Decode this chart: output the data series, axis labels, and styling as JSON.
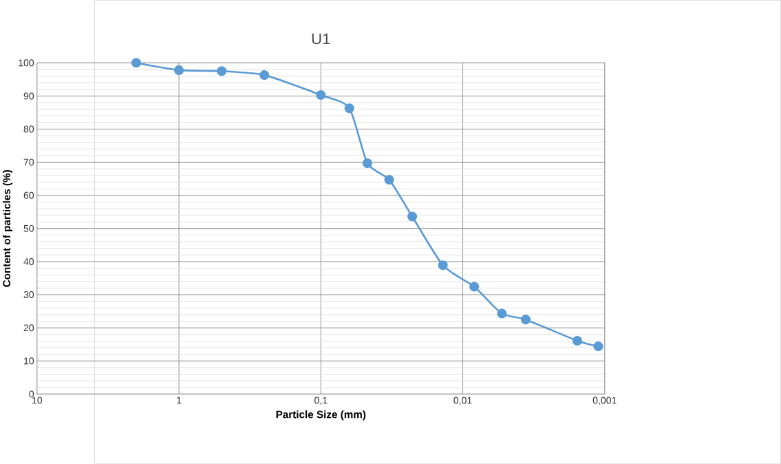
{
  "chart_data": {
    "type": "line",
    "title": "U1",
    "xlabel": "Particle Size (mm)",
    "ylabel": "Content of particles (%)",
    "x": [
      2,
      1,
      0.5,
      0.25,
      0.1,
      0.063,
      0.047,
      0.033,
      0.0227,
      0.0138,
      0.0083,
      0.0053,
      0.0036,
      0.00156,
      0.00111
    ],
    "series": [
      {
        "color": "#5b9bd5",
        "values": [
          100,
          97.8,
          97.5,
          96.3,
          90.3,
          86.3,
          69.7,
          64.7,
          53.6,
          38.9,
          32.4,
          24.3,
          22.5,
          16.1,
          14.4
        ]
      }
    ],
    "log": "x",
    "xlim": [
      10,
      0.001
    ],
    "xticks": [
      10,
      1,
      {
        "value": 0.1,
        "label": "0,1"
      },
      {
        "value": 0.01,
        "label": "0,01"
      },
      {
        "value": 0.001,
        "label": "0,001"
      }
    ],
    "ylim": [
      0,
      100
    ],
    "yticks": [
      0,
      10,
      20,
      30,
      40,
      50,
      60,
      70,
      80,
      90,
      100
    ],
    "grid": true,
    "marker": "circle",
    "line_style": "solid"
  }
}
